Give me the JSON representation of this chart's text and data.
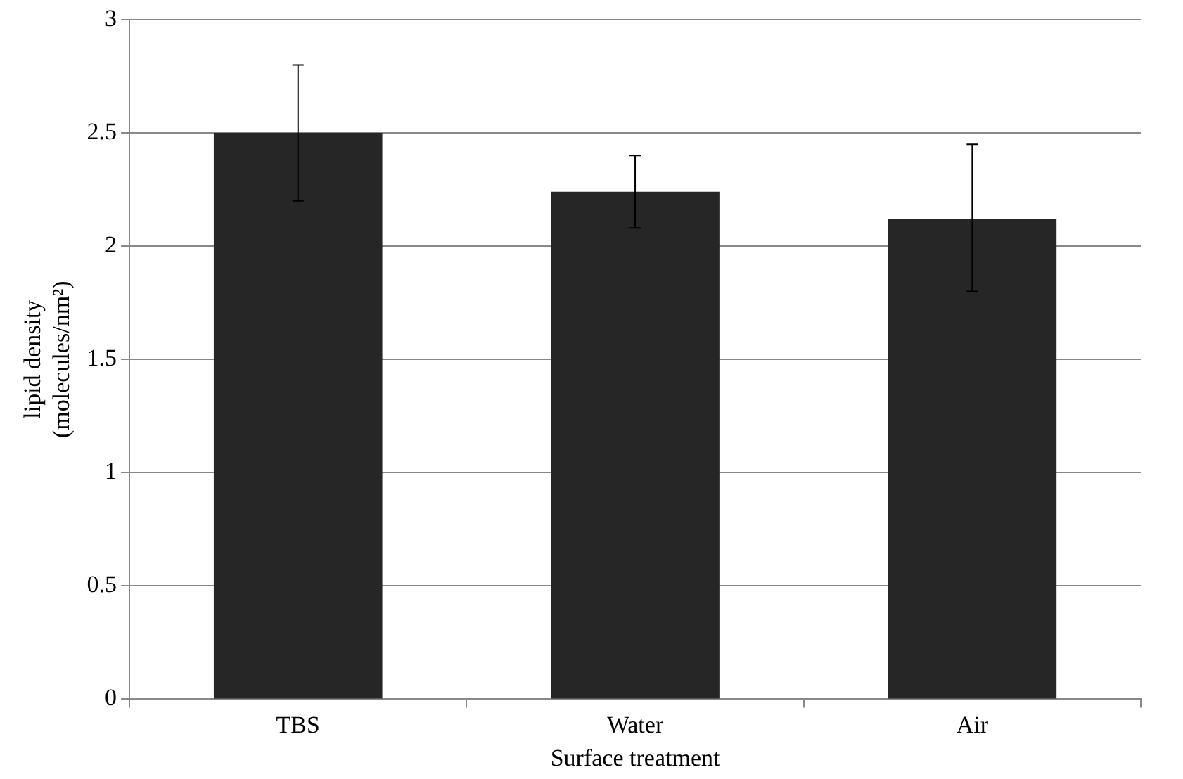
{
  "chart_data": {
    "type": "bar",
    "xlabel": "Surface treatment",
    "ylabel": "lipid density\n(molecules/nm²)",
    "categories": [
      "TBS",
      "Water",
      "Air"
    ],
    "values": [
      2.5,
      2.24,
      2.12
    ],
    "errors": [
      [
        2.2,
        2.8
      ],
      [
        2.08,
        2.4
      ],
      [
        1.8,
        2.45
      ]
    ],
    "color": "#262626",
    "ylim": [
      0,
      3
    ],
    "yticks": [
      0,
      0.5,
      1,
      1.5,
      2,
      2.5,
      3
    ],
    "grid": "y"
  }
}
